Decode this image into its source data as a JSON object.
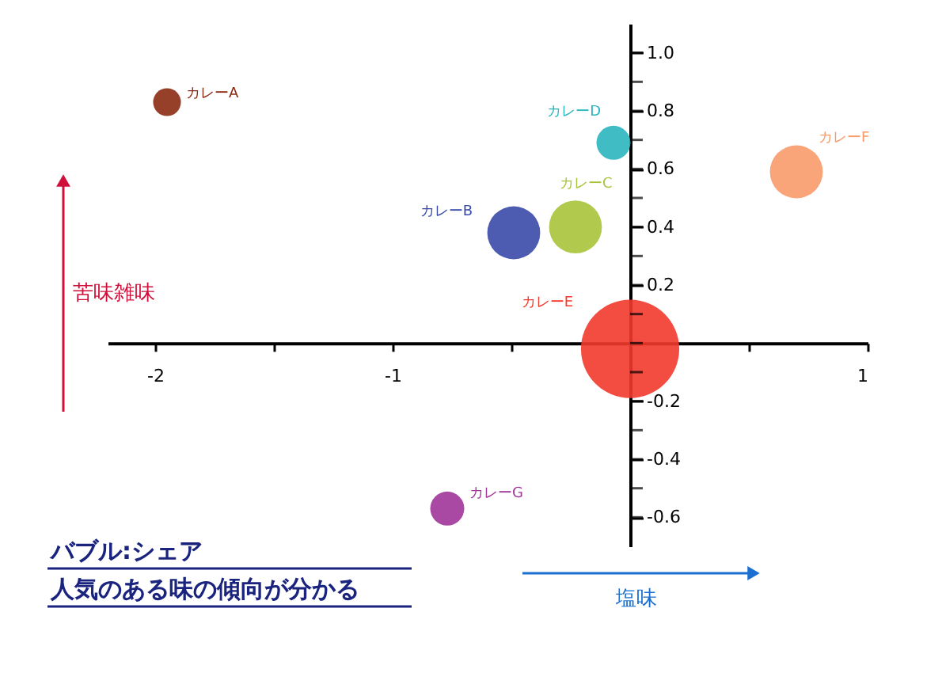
{
  "chart_data": {
    "type": "bubble",
    "xlabel": "塩味",
    "ylabel": "苦味雑味",
    "annotations": [
      "バブル:シェア",
      "人気のある味の傾向が分かる"
    ],
    "xlim": [
      -2.2,
      1.0
    ],
    "ylim": [
      -0.7,
      1.1
    ],
    "xticks": [
      -2,
      {
        "value": -1.5,
        "label": null
      },
      -1,
      {
        "value": -0.5,
        "label": null
      },
      {
        "value": 0,
        "label": null
      },
      {
        "value": 0.5,
        "label": null
      },
      1
    ],
    "yticks": [
      {
        "value": 1,
        "label": "1.0"
      },
      {
        "value": 0.9,
        "label": null
      },
      0.8,
      {
        "value": 0.7,
        "label": null
      },
      0.6,
      {
        "value": 0.5,
        "label": null
      },
      0.4,
      {
        "value": 0.3,
        "label": null
      },
      0.2,
      {
        "value": 0.1,
        "label": null
      },
      {
        "value": 0,
        "label": null
      },
      {
        "value": -0.1,
        "label": null
      },
      -0.2,
      {
        "value": -0.3,
        "label": null
      },
      -0.4,
      {
        "value": -0.5,
        "label": null
      },
      -0.6
    ],
    "marker": "circle",
    "grid": false,
    "series": [
      {
        "name": "カレーA",
        "color": "#8b2a12",
        "x": [
          -1.95
        ],
        "values": [
          0.83
        ],
        "sizes": [
          0.08
        ]
      },
      {
        "name": "カレーB",
        "color": "#3a4aa8",
        "x": [
          -0.49
        ],
        "values": [
          0.38
        ],
        "sizes": [
          0.29
        ]
      },
      {
        "name": "カレーC",
        "color": "#a8c43a",
        "x": [
          -0.23
        ],
        "values": [
          0.4
        ],
        "sizes": [
          0.29
        ]
      },
      {
        "name": "カレーD",
        "color": "#2bb5bf",
        "x": [
          -0.07
        ],
        "values": [
          0.69
        ],
        "sizes": [
          0.12
        ]
      },
      {
        "name": "カレーE",
        "color": "#f23a2e",
        "x": [
          0
        ],
        "values": [
          -0.02
        ],
        "sizes": [
          1
        ]
      },
      {
        "name": "カレーF",
        "color": "#f99a6a",
        "x": [
          0.7
        ],
        "values": [
          0.59
        ],
        "sizes": [
          0.29
        ]
      },
      {
        "name": "カレーG",
        "color": "#a0359a",
        "x": [
          -0.77
        ],
        "values": [
          -0.57
        ],
        "sizes": [
          0.12
        ]
      }
    ]
  }
}
